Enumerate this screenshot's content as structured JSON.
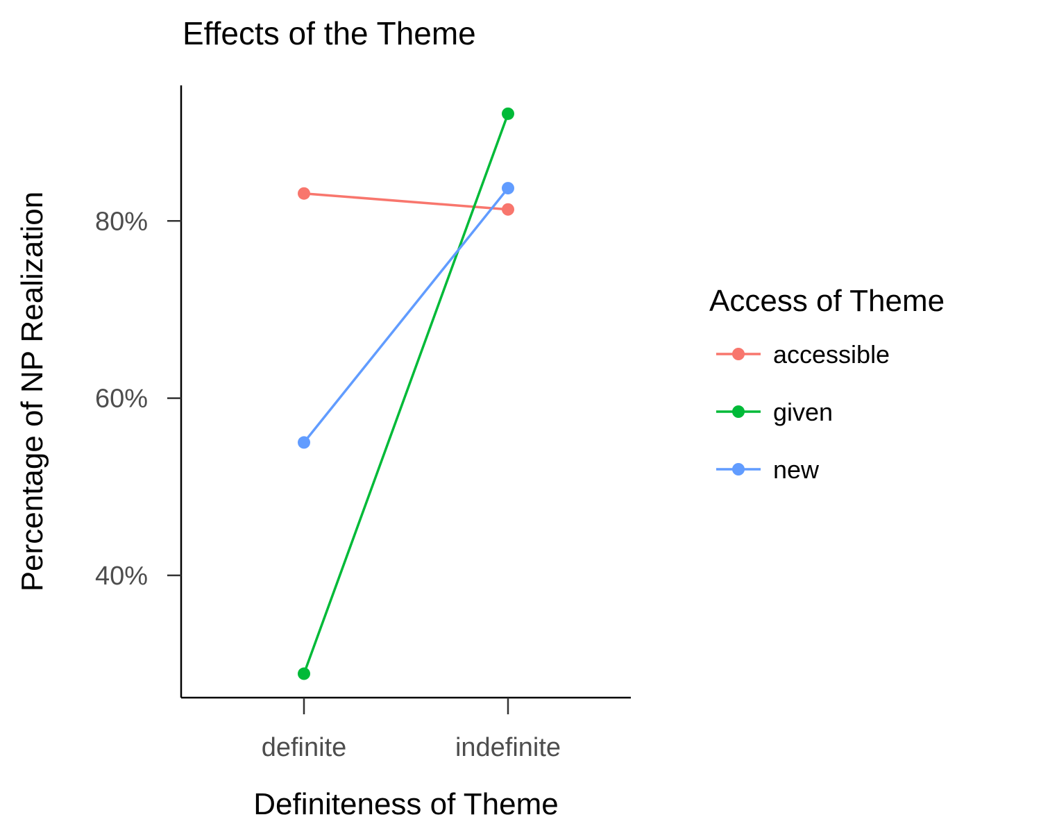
{
  "chart_data": {
    "type": "line",
    "title": "Effects of the Theme",
    "xlabel": "Definiteness of Theme",
    "ylabel": "Percentage of NP Realization",
    "categories": [
      "definite",
      "indefinite"
    ],
    "y_ticks": [
      0.4,
      0.6,
      0.8
    ],
    "y_tick_labels": [
      "40%",
      "60%",
      "80%"
    ],
    "ylim": [
      0.262,
      0.953
    ],
    "legend_title": "Access of Theme",
    "legend_position": "right",
    "grid": false,
    "series": [
      {
        "name": "accessible",
        "color": "#F8766D",
        "values": [
          0.831,
          0.813
        ]
      },
      {
        "name": "given",
        "color": "#00BA38",
        "values": [
          0.289,
          0.921
        ]
      },
      {
        "name": "new",
        "color": "#619CFF",
        "values": [
          0.55,
          0.837
        ]
      }
    ]
  }
}
